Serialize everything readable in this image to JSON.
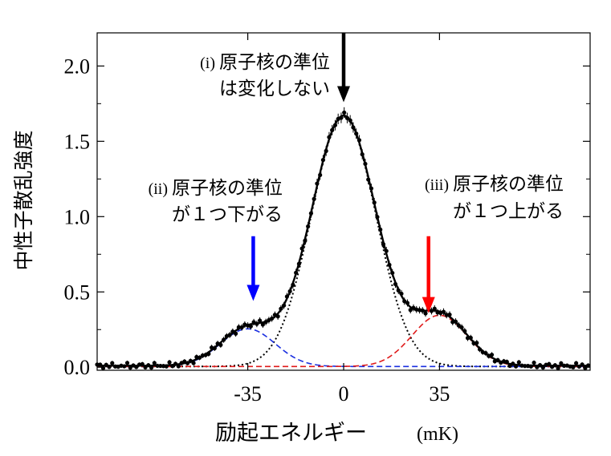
{
  "chart_data": {
    "type": "scatter",
    "xlabel": "励起エネルギー",
    "xunit": "(mK)",
    "ylabel": "中性子散乱強度",
    "xlim": [
      -90,
      90
    ],
    "ylim": [
      -0.02,
      2.22
    ],
    "x_ticks": [
      -35,
      0,
      35
    ],
    "y_ticks": [
      0.0,
      0.5,
      1.0,
      1.5,
      2.0
    ],
    "y_tick_labels": [
      "0.0",
      "0.5",
      "1.0",
      "1.5",
      "2.0"
    ],
    "x_tick_labels": [
      "-35",
      "0",
      "35"
    ],
    "grid": false,
    "colors": {
      "data": "#000000",
      "fit_total": "#000000",
      "central": "#000000",
      "lower": "#1a2fe0",
      "upper": "#e01a1a",
      "arrow_center": "#000000",
      "arrow_left": "#0000ff",
      "arrow_right": "#ff0000"
    },
    "components": [
      {
        "line": "dotted",
        "color_key": "central",
        "center": 0,
        "amplitude": 1.66,
        "sigma": 11.8
      },
      {
        "line": "dashed",
        "color_key": "lower",
        "center": -35,
        "amplitude": 0.25,
        "sigma": 10.0
      },
      {
        "line": "dashed",
        "color_key": "upper",
        "center": 35,
        "amplitude": 0.34,
        "sigma": 10.0
      }
    ],
    "annotations": [
      {
        "id": "center",
        "roman": "(i)",
        "line1": "原子核の準位",
        "line2": "は変化しない",
        "arrow_x": 0,
        "arrow_y_top": 2.22,
        "arrow_y_tip": 1.76
      },
      {
        "id": "left",
        "roman": "(ii)",
        "line1": "原子核の準位",
        "line2": "が１つ下がる",
        "arrow_x": -33,
        "arrow_y_top": 0.87,
        "arrow_y_tip": 0.44
      },
      {
        "id": "right",
        "roman": "(iii)",
        "line1": "原子核の準位",
        "line2": "が１つ上がる",
        "arrow_x": 31,
        "arrow_y_top": 0.87,
        "arrow_y_tip": 0.36
      }
    ]
  }
}
